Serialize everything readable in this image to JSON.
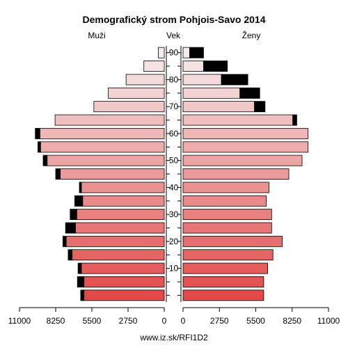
{
  "chart_data": {
    "type": "bar",
    "orientation": "horizontal-pyramid",
    "title": "Demografický strom Pohjois-Savo 2014",
    "left_label": "Muži",
    "center_label": "Vek",
    "right_label": "Ženy",
    "source": "www.iz.sk/RFI1D2",
    "xlim": [
      0,
      11000
    ],
    "x_ticks_left": [
      "11000",
      "8250",
      "5500",
      "2750",
      "0"
    ],
    "x_ticks_right": [
      "0",
      "2750",
      "5500",
      "8250",
      "11000"
    ],
    "y_ticks": [
      "10",
      "20",
      "30",
      "40",
      "50",
      "60",
      "70",
      "80",
      "90"
    ],
    "age_groups": [
      "0-4",
      "5-9",
      "10-14",
      "15-19",
      "20-24",
      "25-29",
      "30-34",
      "35-39",
      "40-44",
      "45-49",
      "50-54",
      "55-59",
      "60-64",
      "65-69",
      "70-74",
      "75-79",
      "80-84",
      "85-89",
      "90+"
    ],
    "men_base": [
      6100,
      6100,
      6300,
      7000,
      7450,
      6750,
      6650,
      6200,
      6300,
      7900,
      8900,
      9400,
      9450,
      8300,
      5350,
      4250,
      2900,
      1550,
      450
    ],
    "men_extra": [
      250,
      500,
      250,
      300,
      250,
      750,
      500,
      600,
      150,
      350,
      300,
      200,
      350,
      0,
      0,
      0,
      0,
      0,
      0
    ],
    "women_base": [
      6100,
      6100,
      6400,
      6800,
      7500,
      6700,
      6700,
      6300,
      6500,
      8000,
      9000,
      9450,
      9450,
      8300,
      5400,
      4300,
      2900,
      1550,
      500
    ],
    "women_extra": [
      0,
      0,
      0,
      0,
      0,
      0,
      0,
      0,
      0,
      0,
      0,
      0,
      0,
      300,
      800,
      1500,
      2000,
      1800,
      1050
    ],
    "colors": {
      "extra": "#000000",
      "young": "#e24a4a",
      "old": "#f4ecec",
      "stroke": "#000000"
    }
  }
}
